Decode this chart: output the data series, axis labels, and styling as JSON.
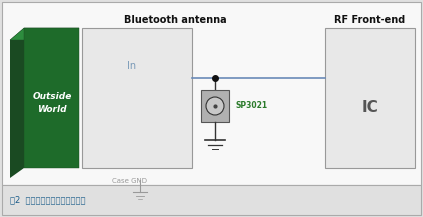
{
  "bg_color": "#e0e0e0",
  "inner_bg_color": "#f8f8f8",
  "title": "Bluetooth antenna",
  "rf_title": "RF Front-end",
  "caption": "图2  蓝牙天线和射频前端的保护",
  "outside_world_text": "Outside\nWorld",
  "in_label": "In",
  "ic_label": "IC",
  "sp_label": "SP3021",
  "case_gnd_label": "Case GND",
  "antenna_box_color": "#e8e8e8",
  "antenna_box_edge": "#999999",
  "rf_box_color": "#e8e8e8",
  "rf_box_edge": "#999999",
  "ow_dark_color": "#1a4a22",
  "ow_mid_color": "#1e6b2a",
  "ow_light_color": "#2d8c3e",
  "sp_box_color": "#b0b0b0",
  "sp_box_edge": "#555555",
  "sp_circle_fill": "#c8c8c8",
  "sp_circle_edge": "#333333",
  "line_color": "#6a8ab8",
  "dot_color": "#111111",
  "gnd_color": "#999999",
  "caption_color": "#1a5c8a",
  "sp_label_color": "#2a7a2a",
  "title_color": "#111111",
  "in_label_color": "#7a9ab8",
  "border_color": "#aaaaaa"
}
